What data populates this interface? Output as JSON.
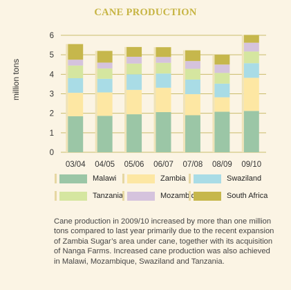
{
  "colors": {
    "Malawi": "#9bc6a6",
    "Zambia": "#fde7a3",
    "Swaziland": "#a9dce6",
    "Tanzania": "#d5e6a0",
    "Mozambique": "#d5c3dd",
    "South Africa": "#c6b74c",
    "title": "#c6b442",
    "grid": "#c9bb6a"
  },
  "chart_data": {
    "type": "bar",
    "stacked": true,
    "title": "CANE PRODUCTION",
    "ylabel": "million tons",
    "ylim": [
      0,
      6
    ],
    "yticks": [
      "0",
      "1",
      "2",
      "3",
      "4",
      "5",
      "6"
    ],
    "grid": true,
    "legend_position": "bottom",
    "categories": [
      "03/04",
      "04/05",
      "05/06",
      "06/07",
      "07/08",
      "08/09",
      "09/10"
    ],
    "series": [
      {
        "name": "Malawi",
        "values": [
          1.85,
          1.87,
          1.95,
          2.06,
          1.9,
          2.08,
          2.12
        ]
      },
      {
        "name": "Zambia",
        "values": [
          1.2,
          1.2,
          1.25,
          1.25,
          1.08,
          0.74,
          1.7
        ]
      },
      {
        "name": "Swaziland",
        "values": [
          0.75,
          0.7,
          0.8,
          0.73,
          0.75,
          0.7,
          0.75
        ]
      },
      {
        "name": "Tanzania",
        "values": [
          0.65,
          0.53,
          0.55,
          0.55,
          0.55,
          0.55,
          0.6
        ]
      },
      {
        "name": "Mozambique",
        "values": [
          0.3,
          0.3,
          0.35,
          0.3,
          0.4,
          0.43,
          0.45
        ]
      },
      {
        "name": "South Africa",
        "values": [
          0.8,
          0.6,
          0.5,
          0.5,
          0.55,
          0.5,
          0.4
        ]
      }
    ]
  },
  "legend": [
    "Malawi",
    "Zambia",
    "Swaziland",
    "Tanzania",
    "Mozambique",
    "South Africa"
  ],
  "caption": "Cane production in 2009/10 increased by more than one million tons compared to last year primarily due to the recent expansion of Zambia Sugar’s area under cane, together with its acquisition of Nanga Farms. Increased cane production was also achieved in Malawi, Mozambique, Swaziland and Tanzania."
}
